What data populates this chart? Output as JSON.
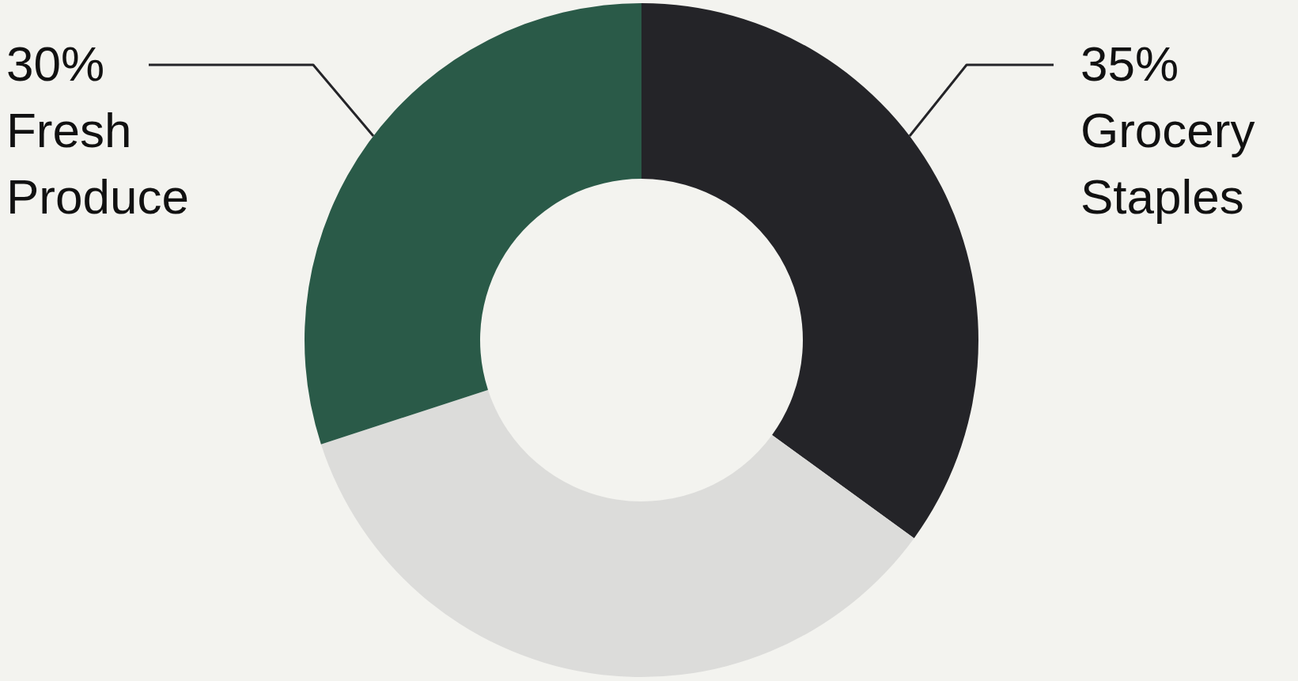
{
  "chart_data": {
    "type": "donut",
    "categories": [
      "Grocery Staples",
      null,
      "Fresh Produce"
    ],
    "values": [
      35,
      35,
      30
    ],
    "colors": [
      "#242428",
      "#dcdcda",
      "#2a5a48"
    ],
    "value_labels": [
      "35%",
      null,
      "30%"
    ]
  }
}
